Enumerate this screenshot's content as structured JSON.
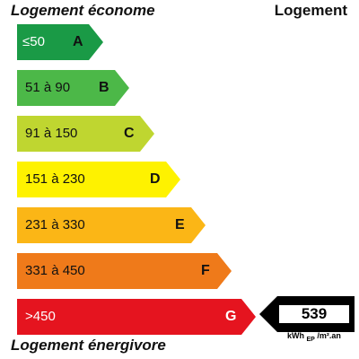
{
  "header": {
    "top_left": "Logement économe",
    "top_right": "Logement",
    "bottom_left": "Logement énergivore"
  },
  "classes": [
    {
      "letter": "A",
      "range": "≤50",
      "color": "#1a9a46"
    },
    {
      "letter": "B",
      "range": "51 à 90",
      "color": "#4cb848"
    },
    {
      "letter": "C",
      "range": "91 à 150",
      "color": "#bfd630"
    },
    {
      "letter": "D",
      "range": "151 à 230",
      "color": "#fef200"
    },
    {
      "letter": "E",
      "range": "231 à 330",
      "color": "#fbb616"
    },
    {
      "letter": "F",
      "range": "331 à 450",
      "color": "#ef7a1a"
    },
    {
      "letter": "G",
      "range": ">450",
      "color": "#e5141f"
    }
  ],
  "indicator": {
    "value": "539",
    "class": "G",
    "unit_main": "kWh",
    "unit_sub": "EP",
    "unit_tail": "/m².an"
  }
}
